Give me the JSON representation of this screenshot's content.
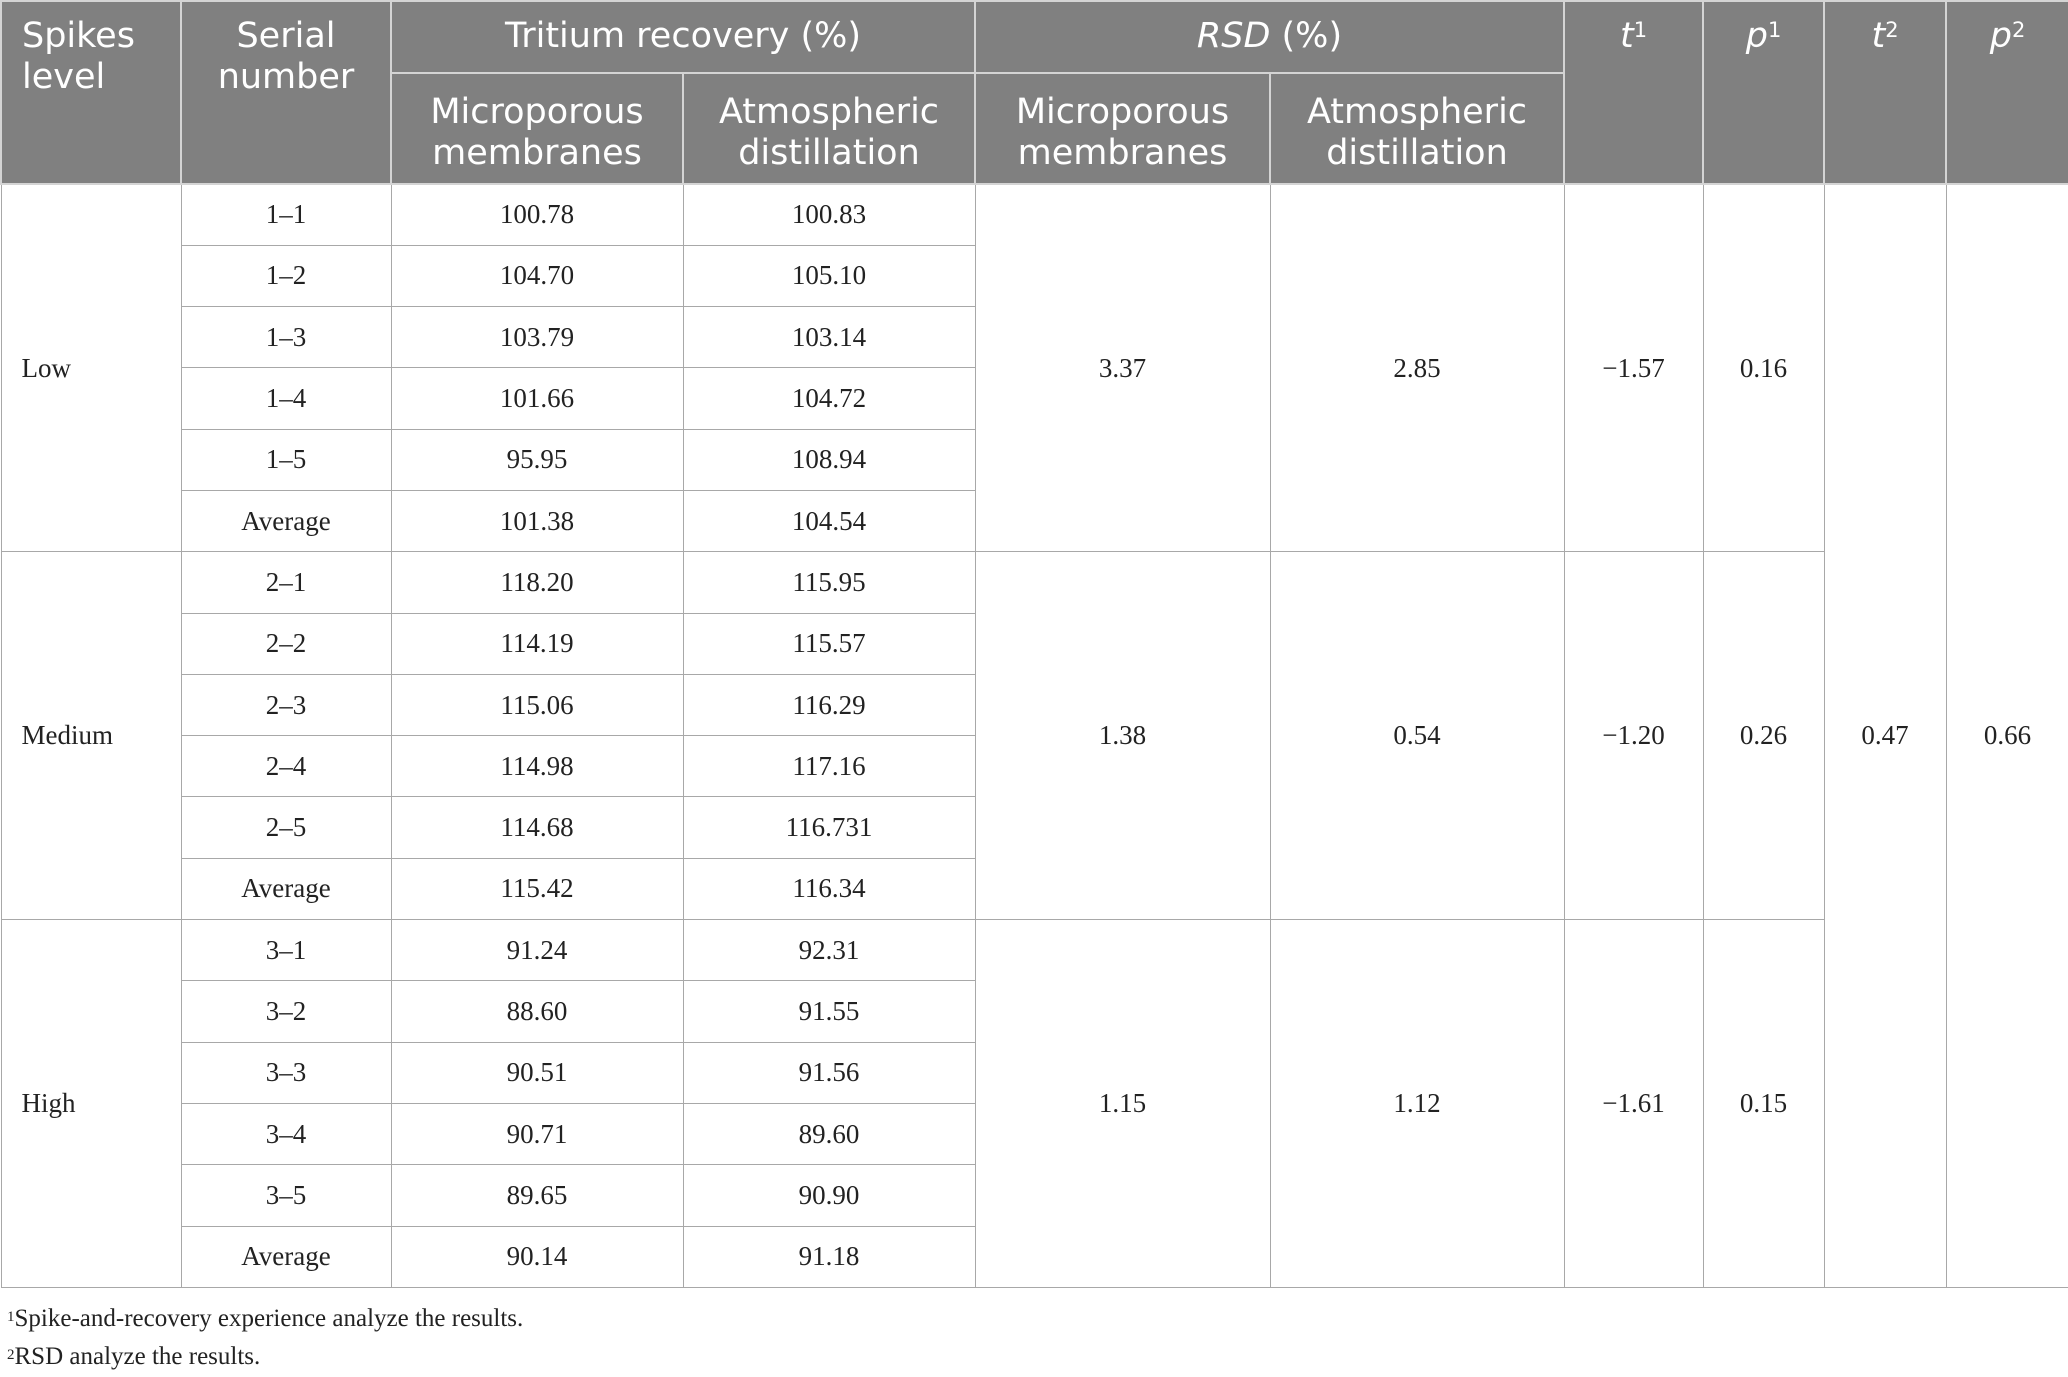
{
  "headers": {
    "spikes_level": "Spikes level",
    "serial_number": "Serial number",
    "tritium_recovery": "Tritium recovery (%)",
    "rsd_name": "RSD",
    "rsd_unit": " (%)",
    "microporous": "Microporous membranes",
    "atmospheric": "Atmospheric distillation",
    "t": "t",
    "p": "p",
    "sup1": "1",
    "sup2": "2"
  },
  "groups": [
    {
      "level": "Low",
      "rsd_micro": "3.37",
      "rsd_atmo": "2.85",
      "t1": "−1.57",
      "p1": "0.16",
      "rows": [
        {
          "serial": "1–1",
          "micro": "100.78",
          "atmo": "100.83"
        },
        {
          "serial": "1–2",
          "micro": "104.70",
          "atmo": "105.10"
        },
        {
          "serial": "1–3",
          "micro": "103.79",
          "atmo": "103.14"
        },
        {
          "serial": "1–4",
          "micro": "101.66",
          "atmo": "104.72"
        },
        {
          "serial": "1–5",
          "micro": "95.95",
          "atmo": "108.94"
        },
        {
          "serial": "Average",
          "micro": "101.38",
          "atmo": "104.54"
        }
      ]
    },
    {
      "level": "Medium",
      "rsd_micro": "1.38",
      "rsd_atmo": "0.54",
      "t1": "−1.20",
      "p1": "0.26",
      "rows": [
        {
          "serial": "2–1",
          "micro": "118.20",
          "atmo": "115.95"
        },
        {
          "serial": "2–2",
          "micro": "114.19",
          "atmo": "115.57"
        },
        {
          "serial": "2–3",
          "micro": "115.06",
          "atmo": "116.29"
        },
        {
          "serial": "2–4",
          "micro": "114.98",
          "atmo": "117.16"
        },
        {
          "serial": "2–5",
          "micro": "114.68",
          "atmo": "116.731"
        },
        {
          "serial": "Average",
          "micro": "115.42",
          "atmo": "116.34"
        }
      ]
    },
    {
      "level": "High",
      "rsd_micro": "1.15",
      "rsd_atmo": "1.12",
      "t1": "−1.61",
      "p1": "0.15",
      "rows": [
        {
          "serial": "3–1",
          "micro": "91.24",
          "atmo": "92.31"
        },
        {
          "serial": "3–2",
          "micro": "88.60",
          "atmo": "91.55"
        },
        {
          "serial": "3–3",
          "micro": "90.51",
          "atmo": "91.56"
        },
        {
          "serial": "3–4",
          "micro": "90.71",
          "atmo": "89.60"
        },
        {
          "serial": "3–5",
          "micro": "89.65",
          "atmo": "90.90"
        },
        {
          "serial": "Average",
          "micro": "90.14",
          "atmo": "91.18"
        }
      ]
    }
  ],
  "t2": "0.47",
  "p2": "0.66",
  "footnotes": [
    {
      "mark": "1",
      "text": "Spike-and-recovery experience analyze the results."
    },
    {
      "mark": "2",
      "text": "RSD analyze the results."
    }
  ]
}
